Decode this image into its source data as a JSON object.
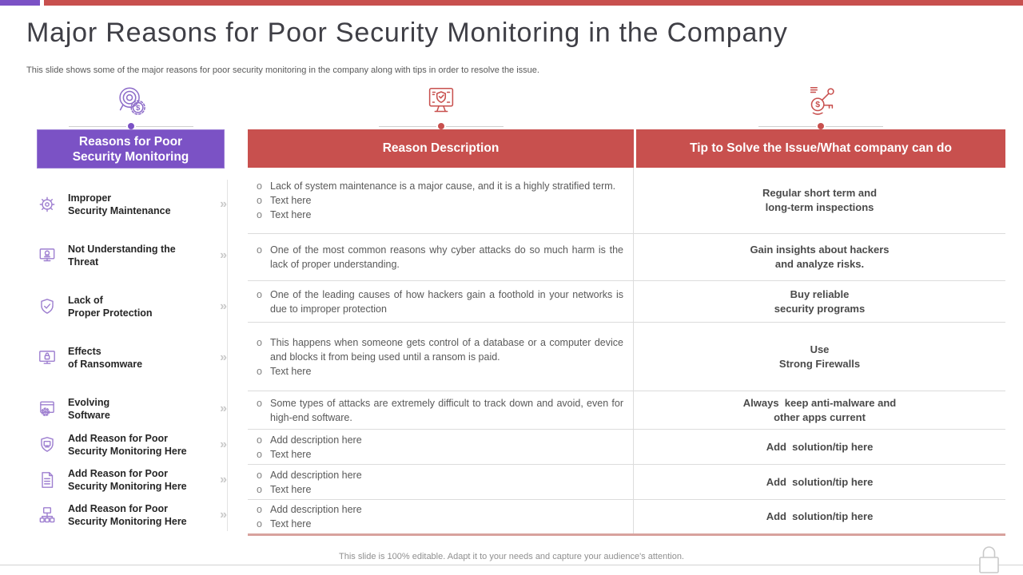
{
  "title": "Major Reasons for Poor Security Monitoring in the Company",
  "subtitle": "This slide shows some of the major reasons for poor security monitoring in the company along with tips in order to  resolve the issue.",
  "sidebar": {
    "header_lines": [
      "Reasons for Poor",
      "Security Monitoring"
    ],
    "chevron": "»",
    "items": [
      {
        "icon": "malware-bug-icon",
        "lines": [
          "Improper",
          "Security Maintenance"
        ]
      },
      {
        "icon": "threat-monitor-icon",
        "lines": [
          "Not Understanding the",
          "Threat"
        ]
      },
      {
        "icon": "shield-check-icon",
        "lines": [
          "Lack of",
          "Proper Protection"
        ]
      },
      {
        "icon": "ransomware-monitor-icon",
        "lines": [
          "Effects",
          "of Ransomware"
        ]
      },
      {
        "icon": "software-gear-icon",
        "lines": [
          "Evolving",
          "Software"
        ]
      },
      {
        "icon": "shield-monitor-icon",
        "lines": [
          "Add Reason for Poor",
          "Security Monitoring Here"
        ]
      },
      {
        "icon": "document-icon",
        "lines": [
          "Add Reason for Poor",
          "Security Monitoring Here"
        ]
      },
      {
        "icon": "network-icon",
        "lines": [
          "Add Reason for Poor",
          "Security Monitoring Here"
        ]
      }
    ]
  },
  "table": {
    "bullet_marker": "o",
    "headers": {
      "description": "Reason Description",
      "tip": "Tip to Solve the Issue/What company can do"
    },
    "rows": [
      {
        "bullets": [
          "Lack of system maintenance is a major cause, and it is a highly stratified term.",
          "Text here",
          "Text here"
        ],
        "tip_lines": [
          "Regular short term and",
          "long-term inspections"
        ]
      },
      {
        "bullets": [
          "One of the most common reasons why cyber attacks do so much harm is the lack of proper understanding."
        ],
        "tip_lines": [
          "Gain insights about hackers",
          "and analyze risks."
        ]
      },
      {
        "bullets": [
          "One of the leading causes of how hackers gain a foothold in your networks is due to improper protection"
        ],
        "tip_lines": [
          "Buy reliable",
          "security programs"
        ]
      },
      {
        "bullets": [
          "This happens when someone gets control of a database or a computer device and blocks it from being used until a ransom is paid.",
          "Text here"
        ],
        "tip_lines": [
          "Use",
          "Strong Firewalls"
        ]
      },
      {
        "bullets": [
          "Some types of attacks are extremely difficult to track down and avoid, even for high-end software."
        ],
        "tip_lines": [
          "Always  keep anti-malware and",
          "other apps current"
        ]
      },
      {
        "bullets": [
          "Add description here",
          "Text here"
        ],
        "tip_lines": [
          "Add  solution/tip here"
        ]
      },
      {
        "bullets": [
          "Add description here",
          "Text here"
        ],
        "tip_lines": [
          "Add  solution/tip here"
        ]
      },
      {
        "bullets": [
          "Add description here",
          "Text here"
        ],
        "tip_lines": [
          "Add  solution/tip here"
        ]
      }
    ]
  },
  "footer": "This slide is 100% editable.  Adapt it to your needs and capture your audience's attention.",
  "colors": {
    "accent_purple": "#7B52C5",
    "accent_red": "#C8504E",
    "icon_purple": "#9E7FD0",
    "table_border": "#DCDCDC",
    "table_bottom_border": "#D8A29D",
    "text_dark": "#262626",
    "text_body": "#595959"
  }
}
